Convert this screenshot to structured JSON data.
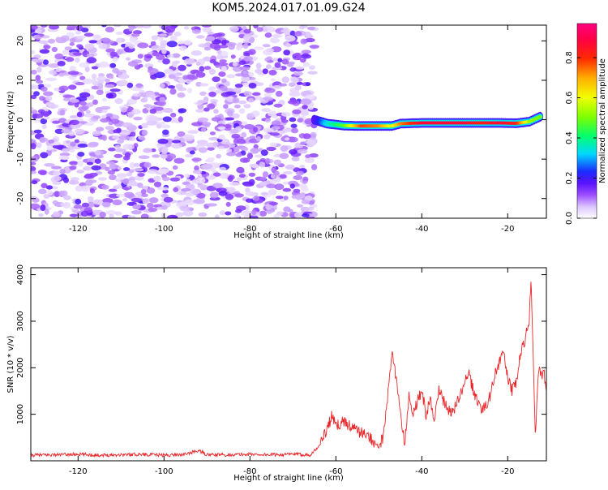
{
  "title": "KOM5.2024.017.01.09.G24",
  "chart_data": [
    {
      "type": "heatmap",
      "xlabel": "Height of straight line (km)",
      "ylabel": "Frequency (Hz)",
      "xlim": [
        -131,
        -11
      ],
      "ylim": [
        -25,
        24
      ],
      "xticks": [
        -120,
        -100,
        -80,
        -60,
        -40,
        -20
      ],
      "yticks": [
        -20,
        -10,
        0,
        10,
        20
      ],
      "noise_region": {
        "x": [
          -131,
          -65
        ],
        "y": [
          -25,
          24
        ],
        "amplitude_range": [
          0.0,
          0.3
        ]
      },
      "signal_track": [
        {
          "x": -65,
          "y": 0.0,
          "amp": 0.18
        },
        {
          "x": -62,
          "y": -1.0,
          "amp": 0.35
        },
        {
          "x": -58,
          "y": -1.5,
          "amp": 0.5
        },
        {
          "x": -54,
          "y": -1.6,
          "amp": 0.8
        },
        {
          "x": -50,
          "y": -1.6,
          "amp": 0.75
        },
        {
          "x": -47,
          "y": -1.6,
          "amp": 0.6
        },
        {
          "x": -45,
          "y": -1.0,
          "amp": 0.75
        },
        {
          "x": -40,
          "y": -0.8,
          "amp": 0.9
        },
        {
          "x": -35,
          "y": -0.8,
          "amp": 0.9
        },
        {
          "x": -30,
          "y": -0.8,
          "amp": 0.9
        },
        {
          "x": -26,
          "y": -0.8,
          "amp": 0.85
        },
        {
          "x": -22,
          "y": -0.8,
          "amp": 0.9
        },
        {
          "x": -18,
          "y": -0.9,
          "amp": 0.85
        },
        {
          "x": -15,
          "y": -0.5,
          "amp": 0.55
        },
        {
          "x": -12,
          "y": 1.0,
          "amp": 0.5
        }
      ],
      "colorbar": {
        "label": "Normalized spectral amplitude",
        "ticks": [
          0.0,
          0.2,
          0.4,
          0.6,
          0.8
        ],
        "range": [
          0,
          0.97
        ]
      }
    },
    {
      "type": "line",
      "xlabel": "Height of straight line (km)",
      "ylabel": "SNR (10 * v/v)",
      "xlim": [
        -131,
        -11
      ],
      "ylim": [
        0,
        4150
      ],
      "xticks": [
        -120,
        -100,
        -80,
        -60,
        -40,
        -20
      ],
      "yticks": [
        1000,
        2000,
        3000,
        4000
      ],
      "series": [
        {
          "color": "#e8262a",
          "points": [
            [
              -131,
              120
            ],
            [
              -125,
              130
            ],
            [
              -120,
              140
            ],
            [
              -115,
              120
            ],
            [
              -110,
              130
            ],
            [
              -105,
              140
            ],
            [
              -100,
              120
            ],
            [
              -95,
              140
            ],
            [
              -92,
              220
            ],
            [
              -90,
              130
            ],
            [
              -85,
              130
            ],
            [
              -80,
              140
            ],
            [
              -75,
              130
            ],
            [
              -70,
              140
            ],
            [
              -66,
              130
            ],
            [
              -64,
              300
            ],
            [
              -62,
              700
            ],
            [
              -61,
              950
            ],
            [
              -60,
              750
            ],
            [
              -58,
              850
            ],
            [
              -56,
              700
            ],
            [
              -54,
              600
            ],
            [
              -52,
              500
            ],
            [
              -50,
              300
            ],
            [
              -49,
              500
            ],
            [
              -48,
              1300
            ],
            [
              -47,
              2300
            ],
            [
              -46,
              1800
            ],
            [
              -45,
              1100
            ],
            [
              -44,
              350
            ],
            [
              -43,
              1400
            ],
            [
              -42,
              1000
            ],
            [
              -41,
              1300
            ],
            [
              -40,
              1500
            ],
            [
              -39,
              1000
            ],
            [
              -38,
              1300
            ],
            [
              -37,
              900
            ],
            [
              -36,
              1500
            ],
            [
              -35,
              1300
            ],
            [
              -34,
              1100
            ],
            [
              -33,
              1050
            ],
            [
              -32,
              1200
            ],
            [
              -31,
              1400
            ],
            [
              -30,
              1700
            ],
            [
              -29,
              1850
            ],
            [
              -28,
              1500
            ],
            [
              -27,
              1300
            ],
            [
              -26,
              1100
            ],
            [
              -25,
              1200
            ],
            [
              -24,
              1400
            ],
            [
              -23,
              1900
            ],
            [
              -22,
              2100
            ],
            [
              -21,
              2300
            ],
            [
              -20,
              1800
            ],
            [
              -19,
              1500
            ],
            [
              -18,
              1700
            ],
            [
              -17,
              2300
            ],
            [
              -16,
              2600
            ],
            [
              -15,
              3000
            ],
            [
              -14.6,
              3950
            ],
            [
              -14.2,
              2800
            ],
            [
              -13.6,
              500
            ],
            [
              -13,
              1700
            ],
            [
              -12.5,
              2000
            ],
            [
              -12,
              1800
            ],
            [
              -11.5,
              1900
            ],
            [
              -11,
              1500
            ]
          ]
        }
      ]
    }
  ]
}
